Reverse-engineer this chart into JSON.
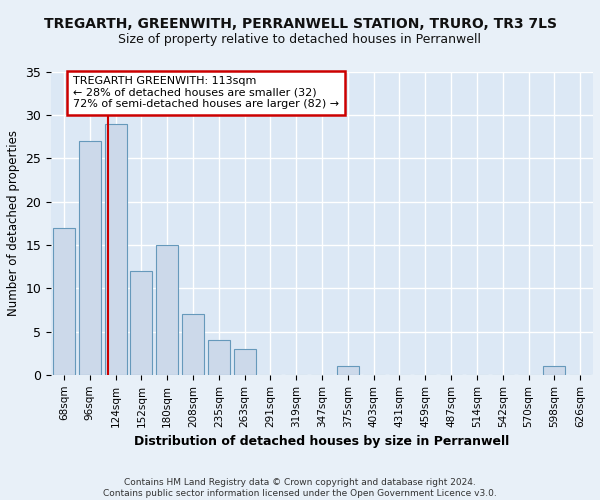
{
  "title": "TREGARTH, GREENWITH, PERRANWELL STATION, TRURO, TR3 7LS",
  "subtitle": "Size of property relative to detached houses in Perranwell",
  "xlabel": "Distribution of detached houses by size in Perranwell",
  "ylabel": "Number of detached properties",
  "bar_color": "#ccd9ea",
  "bar_edge_color": "#6699bb",
  "background_color": "#dce8f5",
  "fig_background_color": "#e8f0f8",
  "grid_color": "#ffffff",
  "categories": [
    "68sqm",
    "96sqm",
    "124sqm",
    "152sqm",
    "180sqm",
    "208sqm",
    "235sqm",
    "263sqm",
    "291sqm",
    "319sqm",
    "347sqm",
    "375sqm",
    "403sqm",
    "431sqm",
    "459sqm",
    "487sqm",
    "514sqm",
    "542sqm",
    "570sqm",
    "598sqm",
    "626sqm"
  ],
  "values": [
    17,
    27,
    29,
    12,
    15,
    7,
    4,
    3,
    0,
    0,
    0,
    1,
    0,
    0,
    0,
    0,
    0,
    0,
    0,
    1,
    0
  ],
  "ylim": [
    0,
    35
  ],
  "yticks": [
    0,
    5,
    10,
    15,
    20,
    25,
    30,
    35
  ],
  "vline_x": 1.72,
  "annotation_text": "TREGARTH GREENWITH: 113sqm\n← 28% of detached houses are smaller (32)\n72% of semi-detached houses are larger (82) →",
  "annotation_box_color": "#ffffff",
  "annotation_box_edge_color": "#cc0000",
  "vline_color": "#cc0000",
  "footnote": "Contains HM Land Registry data © Crown copyright and database right 2024.\nContains public sector information licensed under the Open Government Licence v3.0."
}
